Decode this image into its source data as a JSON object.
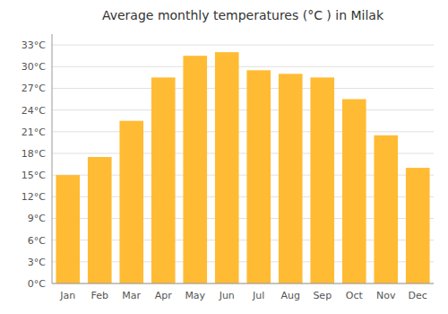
{
  "chart_data": {
    "type": "bar",
    "title": "Average monthly temperatures (°C ) in Milak",
    "categories": [
      "Jan",
      "Feb",
      "Mar",
      "Apr",
      "May",
      "Jun",
      "Jul",
      "Aug",
      "Sep",
      "Oct",
      "Nov",
      "Dec"
    ],
    "values": [
      15,
      17.5,
      22.5,
      28.5,
      31.5,
      32,
      29.5,
      29,
      28.5,
      25.5,
      20.5,
      16
    ],
    "color": "#FFBB33",
    "ylim": [
      0,
      34.5
    ],
    "yticks": [
      {
        "value": 0,
        "label": "0°C"
      },
      {
        "value": 3,
        "label": "3°C"
      },
      {
        "value": 6,
        "label": "6°C"
      },
      {
        "value": 9,
        "label": "9°C"
      },
      {
        "value": 12,
        "label": "12°C"
      },
      {
        "value": 15,
        "label": "15°C"
      },
      {
        "value": 18,
        "label": "18°C"
      },
      {
        "value": 21,
        "label": "21°C"
      },
      {
        "value": 24,
        "label": "24°C"
      },
      {
        "value": 27,
        "label": "27°C"
      },
      {
        "value": 30,
        "label": "30°C"
      },
      {
        "value": 33,
        "label": "33°C"
      }
    ],
    "grid": true
  }
}
